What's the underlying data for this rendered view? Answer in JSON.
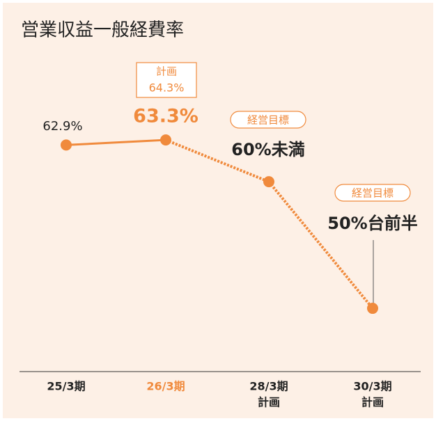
{
  "chart_data": {
    "type": "line",
    "title": "営業収益一般経費率",
    "categories": [
      [
        "25/3期"
      ],
      [
        "26/3期"
      ],
      [
        "28/3期",
        "計画"
      ],
      [
        "30/3期",
        "計画"
      ]
    ],
    "category_colors": [
      "#222222",
      "#f08a3c",
      "#222222",
      "#222222"
    ],
    "series": [
      {
        "color": "#f08a3c",
        "values": [
          62.9,
          63.3,
          60,
          50
        ],
        "value_labels": [
          "62.9%",
          "63.3%",
          "60%未満",
          "50%台前半"
        ],
        "value_label_colors": [
          "#222222",
          "#f08a3c",
          "#222222",
          "#222222"
        ],
        "segment_styles": [
          "solid",
          "dotted",
          "dotted"
        ]
      }
    ],
    "plan_note": {
      "title": "計画",
      "value_label": "64.3%"
    },
    "target_tags": [
      "経営目標",
      "経営目標"
    ],
    "ylim": [
      45,
      66
    ]
  }
}
